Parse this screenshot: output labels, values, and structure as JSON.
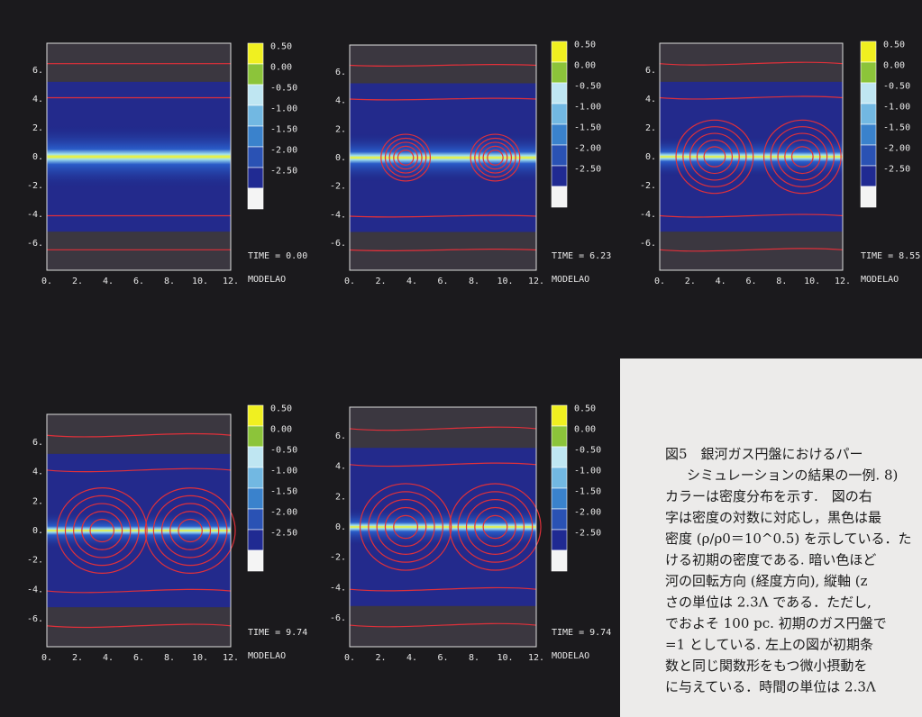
{
  "figure": {
    "panels": [
      {
        "time": "TIME = 0.00",
        "model": "MODELAO"
      },
      {
        "time": "TIME = 6.23",
        "model": "MODELAO"
      },
      {
        "time": "TIME = 8.55",
        "model": "MODELAO"
      },
      {
        "time": "TIME = 9.74",
        "model": "MODELAO"
      },
      {
        "time": "TIME = 9.74",
        "model": "MODELAO"
      }
    ],
    "xticks": [
      "0.",
      "2.",
      "4.",
      "6.",
      "8.",
      "10.",
      "12."
    ],
    "yticks": [
      "6.",
      "4.",
      "2.",
      "0.",
      "-2.",
      "-4.",
      "-6."
    ],
    "colorbar": [
      "0.50",
      "0.00",
      "-0.50",
      "-1.00",
      "-1.50",
      "-2.00",
      "-2.50"
    ]
  },
  "caption": {
    "lines": [
      "図5　銀河ガス円盤におけるパー",
      "シミュレーションの結果の一例. 8)",
      "カラーは密度分布を示す.　図の右",
      "字は密度の対数に対応し，黒色は最",
      "密度 (ρ/ρ0＝10^0.5) を示している．た",
      "ける初期の密度である. 暗い色ほど",
      "河の回転方向 (経度方向), 縦軸 (z",
      "さの単位は 2.3Λ である．ただし,",
      "でおよそ 100 pc.  初期のガス円盤で",
      "=1 としている. 左上の図が初期条",
      "数と同じ関数形をもつ微小摂動を",
      "に与えている．時間の単位は 2.3Λ"
    ]
  }
}
